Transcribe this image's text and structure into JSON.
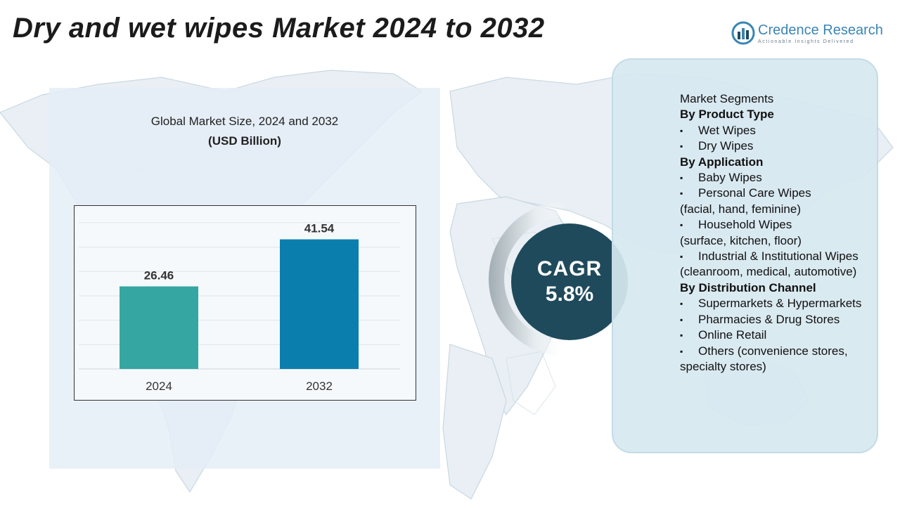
{
  "header": {
    "title": "Dry and wet wipes Market 2024 to 2032"
  },
  "brand": {
    "name": "Credence Research",
    "tagline": "Actionable Insights Delivered",
    "color": "#3a85b4"
  },
  "chart_title": {
    "line1": "Global Market Size, 2024 and 2032",
    "line2": "(USD Billion)"
  },
  "chart_data": {
    "type": "bar",
    "title": "Global Market Size, 2024 and 2032",
    "ylabel": "USD Billion",
    "categories": [
      "2024",
      "2032"
    ],
    "values": [
      26.46,
      41.54
    ],
    "data_labels": [
      "26.46",
      "41.54"
    ],
    "colors": [
      "#35a6a2",
      "#0a7fae"
    ],
    "ylim": [
      0,
      50
    ],
    "grid": true,
    "legend": "none"
  },
  "cagr": {
    "label": "CAGR",
    "value": "5.8%"
  },
  "segments": {
    "heading": "Market Segments",
    "groups": [
      {
        "title": "By Product Type",
        "items": [
          {
            "text": "Wet Wipes"
          },
          {
            "text": "Dry Wipes"
          }
        ]
      },
      {
        "title": "By Application",
        "items": [
          {
            "text": "Baby Wipes"
          },
          {
            "text": "Personal Care Wipes",
            "sub": "(facial, hand, feminine)"
          },
          {
            "text": "Household Wipes",
            "sub": "(surface, kitchen, floor)"
          },
          {
            "text": "Industrial & Institutional Wipes",
            "sub": "(cleanroom, medical, automotive)"
          }
        ]
      },
      {
        "title": "By Distribution Channel",
        "items": [
          {
            "text": "Supermarkets & Hypermarkets"
          },
          {
            "text": "Pharmacies & Drug Stores"
          },
          {
            "text": "Online Retail"
          },
          {
            "text": "Others (convenience stores, specialty stores)"
          }
        ]
      }
    ]
  }
}
